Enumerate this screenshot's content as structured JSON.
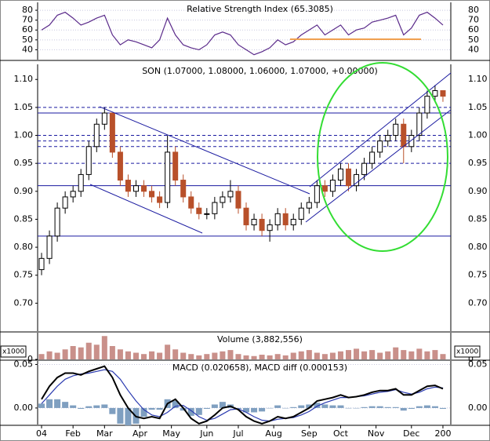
{
  "chart_data": [
    {
      "type": "line",
      "title": "Relative Strength Index (65.3085)",
      "series": [
        {
          "name": "RSI",
          "color": "#5a2a8a",
          "values": [
            60,
            65,
            75,
            78,
            72,
            65,
            68,
            72,
            75,
            55,
            45,
            50,
            48,
            45,
            42,
            50,
            72,
            55,
            45,
            42,
            40,
            45,
            55,
            58,
            55,
            45,
            40,
            35,
            38,
            42,
            50,
            45,
            48,
            55,
            60,
            65,
            55,
            60,
            65,
            55,
            60,
            62,
            68,
            70,
            72,
            75,
            55,
            62,
            75,
            78,
            72,
            65
          ]
        }
      ],
      "ylim": [
        30,
        88
      ],
      "yticks": [
        40,
        50,
        60,
        70,
        80
      ],
      "grid": true
    },
    {
      "type": "candlestick",
      "title": "SON (1.07000, 1.08000, 1.06000, 1.07000, +0.00000)",
      "x": [
        0,
        1,
        2,
        3,
        4,
        5,
        6,
        7,
        8,
        9,
        10,
        11,
        12,
        13,
        14,
        15,
        16,
        17,
        18,
        19,
        20,
        21,
        22,
        23,
        24,
        25,
        26,
        27,
        28,
        29,
        30,
        31,
        32,
        33,
        34,
        35,
        36,
        37,
        38,
        39,
        40,
        41,
        42,
        43,
        44,
        45,
        46,
        47,
        48,
        49,
        50,
        51
      ],
      "xlim": [
        -0.5,
        52
      ],
      "xticks": [
        {
          "value": 0,
          "label": "04"
        },
        {
          "value": 4,
          "label": "Feb"
        },
        {
          "value": 8,
          "label": "Mar"
        },
        {
          "value": 12.5,
          "label": "Apr"
        },
        {
          "value": 16.5,
          "label": "May"
        },
        {
          "value": 21,
          "label": "Jun"
        },
        {
          "value": 25,
          "label": "Jul"
        },
        {
          "value": 29.5,
          "label": "Aug"
        },
        {
          "value": 34,
          "label": "Sep"
        },
        {
          "value": 38,
          "label": "Oct"
        },
        {
          "value": 42.5,
          "label": "Nov"
        },
        {
          "value": 47,
          "label": "Dec"
        },
        {
          "value": 51,
          "label": "200"
        }
      ],
      "open": [
        0.76,
        0.78,
        0.82,
        0.87,
        0.89,
        0.9,
        0.93,
        0.98,
        1.02,
        1.04,
        0.97,
        0.92,
        0.9,
        0.91,
        0.9,
        0.89,
        0.88,
        0.97,
        0.92,
        0.89,
        0.87,
        0.86,
        0.86,
        0.88,
        0.89,
        0.9,
        0.87,
        0.84,
        0.85,
        0.83,
        0.84,
        0.86,
        0.84,
        0.85,
        0.87,
        0.88,
        0.91,
        0.9,
        0.92,
        0.94,
        0.91,
        0.93,
        0.95,
        0.97,
        0.99,
        1.0,
        1.02,
        0.98,
        1.0,
        1.04,
        1.07,
        1.08
      ],
      "high": [
        0.79,
        0.83,
        0.88,
        0.9,
        0.91,
        0.94,
        0.99,
        1.03,
        1.05,
        1.04,
        0.98,
        0.93,
        0.92,
        0.92,
        0.91,
        0.9,
        1.0,
        0.98,
        0.93,
        0.9,
        0.88,
        0.87,
        0.89,
        0.9,
        0.92,
        0.91,
        0.88,
        0.86,
        0.86,
        0.85,
        0.87,
        0.87,
        0.86,
        0.88,
        0.89,
        0.92,
        0.92,
        0.93,
        0.95,
        0.95,
        0.94,
        0.96,
        0.98,
        1.0,
        1.01,
        1.03,
        1.03,
        1.01,
        1.05,
        1.08,
        1.09,
        1.08
      ],
      "low": [
        0.75,
        0.77,
        0.81,
        0.86,
        0.88,
        0.89,
        0.92,
        0.97,
        1.01,
        0.96,
        0.91,
        0.89,
        0.89,
        0.89,
        0.88,
        0.87,
        0.87,
        0.91,
        0.88,
        0.86,
        0.85,
        0.85,
        0.85,
        0.87,
        0.88,
        0.86,
        0.83,
        0.83,
        0.82,
        0.81,
        0.83,
        0.83,
        0.83,
        0.84,
        0.86,
        0.87,
        0.89,
        0.89,
        0.91,
        0.9,
        0.9,
        0.92,
        0.94,
        0.96,
        0.98,
        0.99,
        0.95,
        0.97,
        0.99,
        1.03,
        1.06,
        1.06
      ],
      "close": [
        0.78,
        0.82,
        0.87,
        0.89,
        0.9,
        0.93,
        0.98,
        1.02,
        1.04,
        0.97,
        0.92,
        0.9,
        0.91,
        0.9,
        0.89,
        0.88,
        0.97,
        0.92,
        0.89,
        0.87,
        0.86,
        0.86,
        0.88,
        0.89,
        0.9,
        0.87,
        0.84,
        0.85,
        0.83,
        0.84,
        0.86,
        0.84,
        0.85,
        0.87,
        0.88,
        0.91,
        0.9,
        0.92,
        0.94,
        0.91,
        0.93,
        0.95,
        0.97,
        0.99,
        1.0,
        1.02,
        0.98,
        1.0,
        1.04,
        1.07,
        1.08,
        1.07
      ],
      "up_color": "#000000",
      "down_color": "#b8502a",
      "levels": [
        1.05,
        1.04,
        1.0,
        0.99,
        0.98,
        0.95,
        0.91,
        0.82
      ],
      "level_dashed": [
        true,
        false,
        true,
        true,
        true,
        true,
        false,
        false
      ],
      "level_color": "#1a1aa0",
      "ylim": [
        0.65,
        1.127
      ],
      "yticks": [
        {
          "value": 0.7,
          "label": "0.70"
        },
        {
          "value": 0.75,
          "label": "0.75"
        },
        {
          "value": 0.8,
          "label": "0.80"
        },
        {
          "value": 0.85,
          "label": "0.85"
        },
        {
          "value": 0.9,
          "label": "0.90"
        },
        {
          "value": 0.95,
          "label": "0.95"
        },
        {
          "value": 1.0,
          "label": "1.00"
        },
        {
          "value": 1.05,
          "label": "1.05"
        },
        {
          "value": 1.1,
          "label": "1.10"
        }
      ]
    },
    {
      "type": "bar",
      "title": "Volume (3,882,556)",
      "unit_label": "x1000",
      "color": "#c9908a",
      "values": [
        8,
        12,
        10,
        15,
        20,
        18,
        25,
        22,
        35,
        20,
        15,
        12,
        10,
        8,
        12,
        10,
        22,
        15,
        10,
        8,
        6,
        8,
        10,
        12,
        14,
        8,
        6,
        5,
        7,
        6,
        8,
        6,
        10,
        12,
        14,
        10,
        8,
        10,
        12,
        14,
        16,
        12,
        14,
        10,
        12,
        18,
        14,
        12,
        16,
        12,
        14,
        8
      ],
      "ylim": [
        0,
        40
      ],
      "yticks": [
        0
      ]
    },
    {
      "type": "macd",
      "title": "MACD (0.020658), MACD diff (0.000153)",
      "series": [
        {
          "name": "MACD diff",
          "kind": "bar",
          "color": "#7f9fc0",
          "values": [
            0.005,
            0.01,
            0.01,
            0.007,
            0.003,
            -0.001,
            0.002,
            0.003,
            0.004,
            -0.007,
            -0.018,
            -0.02,
            -0.018,
            -0.01,
            -0.002,
            -0.002,
            0.01,
            0.008,
            -0.003,
            -0.009,
            -0.008,
            -0.001,
            0.004,
            0.007,
            0.004,
            -0.001,
            -0.005,
            -0.005,
            -0.004,
            0,
            0.003,
            0,
            0.001,
            0.003,
            0.004,
            0.006,
            0.004,
            0.003,
            0.003,
            0,
            0,
            0.001,
            0.002,
            0.002,
            0.001,
            0.001,
            -0.003,
            -0.001,
            0.002,
            0.003,
            0.002,
            -0.001
          ]
        },
        {
          "name": "MACD signal",
          "kind": "line",
          "color": "#2a3ab0",
          "values": [
            0.005,
            0.015,
            0.025,
            0.033,
            0.037,
            0.039,
            0.04,
            0.042,
            0.044,
            0.042,
            0.033,
            0.02,
            0.008,
            -0.002,
            -0.008,
            -0.01,
            -0.005,
            0.002,
            0.003,
            -0.003,
            -0.01,
            -0.014,
            -0.012,
            -0.007,
            -0.002,
            -0.001,
            -0.005,
            -0.01,
            -0.014,
            -0.015,
            -0.013,
            -0.012,
            -0.011,
            -0.008,
            -0.004,
            0.002,
            0.006,
            0.009,
            0.012,
            0.012,
            0.013,
            0.014,
            0.016,
            0.018,
            0.019,
            0.021,
            0.018,
            0.016,
            0.018,
            0.022,
            0.024,
            0.023
          ]
        },
        {
          "name": "MACD",
          "kind": "line",
          "color": "#000000",
          "values": [
            0.01,
            0.025,
            0.035,
            0.04,
            0.04,
            0.038,
            0.042,
            0.045,
            0.048,
            0.035,
            0.015,
            0.0,
            -0.01,
            -0.012,
            -0.01,
            -0.012,
            0.005,
            0.01,
            0.0,
            -0.012,
            -0.018,
            -0.015,
            -0.008,
            0.0,
            0.002,
            -0.002,
            -0.01,
            -0.015,
            -0.018,
            -0.015,
            -0.01,
            -0.012,
            -0.01,
            -0.005,
            0.0,
            0.008,
            0.01,
            0.012,
            0.015,
            0.012,
            0.013,
            0.015,
            0.018,
            0.02,
            0.02,
            0.022,
            0.015,
            0.015,
            0.02,
            0.025,
            0.026,
            0.022
          ]
        }
      ],
      "ylim": [
        -0.019,
        0.054
      ],
      "yticks": [
        {
          "value": 0,
          "label": "0.00"
        },
        {
          "value": 0.05,
          "label": "0.05"
        }
      ],
      "grid": true
    }
  ]
}
